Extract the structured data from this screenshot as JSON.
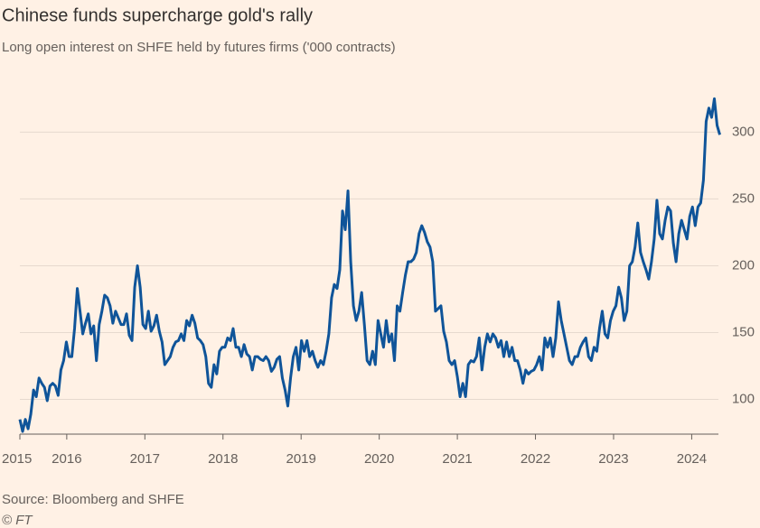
{
  "chart_data": {
    "type": "line",
    "title": "Chinese funds supercharge gold's rally",
    "subtitle": "Long open interest on SHFE held by futures firms ('000 contracts)",
    "source": "Source: Bloomberg and SHFE",
    "credit": "© FT",
    "xlim": [
      2015.4,
      2024.4
    ],
    "xticks": [
      {
        "value": 2015.4,
        "label": "2015"
      },
      2016,
      2017,
      2018,
      2019,
      2020,
      2021,
      2022,
      2023,
      2024
    ],
    "ylim": [
      74,
      332
    ],
    "yticks": [
      100,
      150,
      200,
      250,
      300
    ],
    "grid": true,
    "x": [
      2015.4,
      2015.435,
      2015.47,
      2015.505,
      2015.54,
      2015.575,
      2015.61,
      2015.645,
      2015.68,
      2015.715,
      2015.75,
      2015.785,
      2015.82,
      2015.855,
      2015.89,
      2015.925,
      2015.96,
      2015.995,
      2016.03,
      2016.065,
      2016.1,
      2016.135,
      2016.17,
      2016.205,
      2016.24,
      2016.275,
      2016.31,
      2016.345,
      2016.38,
      2016.415,
      2016.45,
      2016.485,
      2016.52,
      2016.555,
      2016.59,
      2016.625,
      2016.66,
      2016.695,
      2016.73,
      2016.765,
      2016.8,
      2016.835,
      2016.87,
      2016.905,
      2016.94,
      2016.975,
      2017.01,
      2017.045,
      2017.08,
      2017.115,
      2017.15,
      2017.185,
      2017.22,
      2017.255,
      2017.29,
      2017.325,
      2017.36,
      2017.395,
      2017.43,
      2017.465,
      2017.5,
      2017.535,
      2017.57,
      2017.605,
      2017.64,
      2017.675,
      2017.71,
      2017.745,
      2017.78,
      2017.815,
      2017.85,
      2017.885,
      2017.92,
      2017.955,
      2017.99,
      2018.025,
      2018.06,
      2018.095,
      2018.13,
      2018.165,
      2018.2,
      2018.235,
      2018.27,
      2018.305,
      2018.34,
      2018.375,
      2018.41,
      2018.445,
      2018.48,
      2018.515,
      2018.55,
      2018.585,
      2018.62,
      2018.655,
      2018.69,
      2018.725,
      2018.76,
      2018.795,
      2018.83,
      2018.865,
      2018.9,
      2018.935,
      2018.97,
      2019.005,
      2019.04,
      2019.075,
      2019.11,
      2019.145,
      2019.18,
      2019.215,
      2019.25,
      2019.285,
      2019.32,
      2019.355,
      2019.39,
      2019.425,
      2019.46,
      2019.495,
      2019.53,
      2019.565,
      2019.6,
      2019.635,
      2019.67,
      2019.705,
      2019.74,
      2019.775,
      2019.81,
      2019.845,
      2019.88,
      2019.915,
      2019.95,
      2019.985,
      2020.02,
      2020.055,
      2020.09,
      2020.125,
      2020.16,
      2020.195,
      2020.23,
      2020.265,
      2020.3,
      2020.335,
      2020.37,
      2020.405,
      2020.44,
      2020.475,
      2020.51,
      2020.545,
      2020.58,
      2020.615,
      2020.65,
      2020.685,
      2020.72,
      2020.755,
      2020.79,
      2020.825,
      2020.86,
      2020.895,
      2020.93,
      2020.965,
      2021.0,
      2021.035,
      2021.07,
      2021.105,
      2021.14,
      2021.175,
      2021.21,
      2021.245,
      2021.28,
      2021.315,
      2021.35,
      2021.385,
      2021.42,
      2021.455,
      2021.49,
      2021.525,
      2021.56,
      2021.595,
      2021.63,
      2021.665,
      2021.7,
      2021.735,
      2021.77,
      2021.805,
      2021.84,
      2021.875,
      2021.91,
      2021.945,
      2021.98,
      2022.015,
      2022.05,
      2022.085,
      2022.12,
      2022.155,
      2022.19,
      2022.225,
      2022.26,
      2022.295,
      2022.33,
      2022.365,
      2022.4,
      2022.435,
      2022.47,
      2022.505,
      2022.54,
      2022.575,
      2022.61,
      2022.645,
      2022.68,
      2022.715,
      2022.75,
      2022.785,
      2022.82,
      2022.855,
      2022.89,
      2022.925,
      2022.96,
      2022.995,
      2023.03,
      2023.065,
      2023.1,
      2023.135,
      2023.17,
      2023.205,
      2023.24,
      2023.275,
      2023.31,
      2023.345,
      2023.38,
      2023.415,
      2023.45,
      2023.485,
      2023.52,
      2023.555,
      2023.59,
      2023.625,
      2023.66,
      2023.695,
      2023.73,
      2023.765,
      2023.8,
      2023.835,
      2023.87,
      2023.905,
      2023.94,
      2023.975,
      2024.01,
      2024.045,
      2024.08,
      2024.115,
      2024.15,
      2024.185,
      2024.22,
      2024.255,
      2024.29,
      2024.325,
      2024.36
    ],
    "series": [
      {
        "name": "Long open interest",
        "color": "#0f5499",
        "values": [
          85,
          76,
          85,
          78,
          89,
          107,
          102,
          116,
          112,
          109,
          99,
          110,
          112,
          110,
          103,
          122,
          129,
          143,
          132,
          132,
          153,
          183,
          166,
          149,
          157,
          164,
          149,
          155,
          129,
          156,
          166,
          178,
          176,
          170,
          157,
          166,
          161,
          156,
          156,
          164,
          148,
          144,
          184,
          200,
          184,
          156,
          153,
          166,
          151,
          155,
          163,
          151,
          143,
          126,
          129,
          132,
          139,
          143,
          144,
          149,
          144,
          159,
          155,
          163,
          157,
          146,
          144,
          141,
          132,
          112,
          109,
          126,
          119,
          136,
          139,
          139,
          146,
          144,
          153,
          139,
          139,
          132,
          141,
          134,
          132,
          122,
          132,
          132,
          130,
          129,
          132,
          129,
          121,
          124,
          130,
          132,
          116,
          107,
          95,
          116,
          132,
          139,
          122,
          144,
          136,
          144,
          132,
          136,
          129,
          124,
          129,
          126,
          136,
          149,
          176,
          186,
          183,
          197,
          241,
          227,
          256,
          203,
          170,
          159,
          166,
          180,
          156,
          129,
          126,
          136,
          126,
          159,
          149,
          139,
          159,
          143,
          149,
          129,
          170,
          166,
          180,
          193,
          203,
          203,
          205,
          210,
          224,
          230,
          225,
          218,
          214,
          203,
          166,
          168,
          170,
          151,
          143,
          129,
          126,
          129,
          117,
          102,
          112,
          102,
          126,
          129,
          128,
          132,
          146,
          122,
          139,
          149,
          143,
          149,
          146,
          139,
          144,
          132,
          143,
          132,
          139,
          129,
          129,
          122,
          112,
          122,
          119,
          121,
          122,
          126,
          132,
          122,
          146,
          139,
          146,
          132,
          146,
          173,
          159,
          149,
          139,
          129,
          126,
          132,
          132,
          139,
          143,
          146,
          132,
          129,
          139,
          136,
          153,
          166,
          149,
          146,
          159,
          166,
          170,
          184,
          176,
          159,
          166,
          200,
          203,
          214,
          232,
          210,
          203,
          197,
          190,
          203,
          220,
          249,
          224,
          220,
          234,
          244,
          241,
          217,
          203,
          224,
          234,
          227,
          220,
          237,
          244,
          230,
          244,
          247,
          264,
          308,
          318,
          311,
          325,
          305,
          298
        ]
      }
    ]
  }
}
